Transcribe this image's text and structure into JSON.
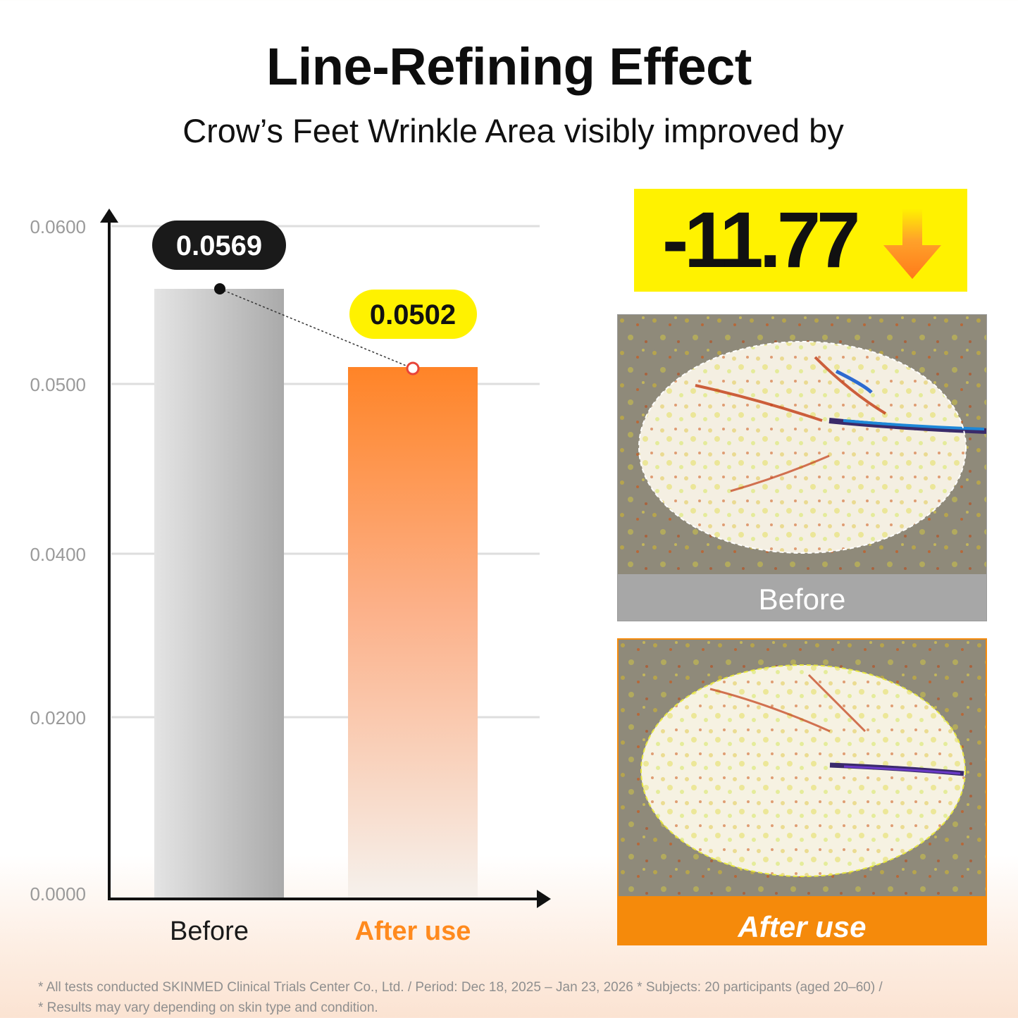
{
  "header": {
    "title": "Line-Refining Effect",
    "subtitle": "Crow’s Feet Wrinkle Area visibly improved by"
  },
  "chart_data": {
    "type": "bar",
    "categories": [
      "Before",
      "After use"
    ],
    "values": [
      0.0569,
      0.0502
    ],
    "value_labels": [
      "0.0569",
      "0.0502"
    ],
    "yticks": [
      0.0,
      0.02,
      0.04,
      0.05,
      0.06
    ],
    "ytick_labels": [
      "0.0000",
      "0.0200",
      "0.0400",
      "0.0500",
      "0.0600"
    ],
    "ylim": [
      0,
      0.06
    ],
    "grid": true,
    "colors": {
      "before_bar_light": "#e2e2e2",
      "before_bar_dark": "#acacac",
      "after_bar_top": "#ff8427",
      "after_bar_bottom": "#f7efe8",
      "before_label_bg": "#1a1a1a",
      "after_label_bg": "#fff200",
      "after_category_text": "#ff8a1e",
      "axis": "#111111",
      "grid": "#dedede",
      "tick_text": "#9a9a9a"
    }
  },
  "highlight": {
    "change_value": "-11.77",
    "arrow_icon": "down-arrow-icon",
    "background": "#fff200",
    "arrow_color": "#ff8a1e"
  },
  "photos": {
    "before_label": "Before",
    "after_label": "After use"
  },
  "footnotes": {
    "line1": "* All tests conducted SKINMED Clinical Trials Center Co., Ltd. / Period: Dec 18, 2025 – Jan 23, 2026  * Subjects: 20 participants (aged 20–60) /",
    "line2": "* Results may vary depending on skin type and condition."
  }
}
